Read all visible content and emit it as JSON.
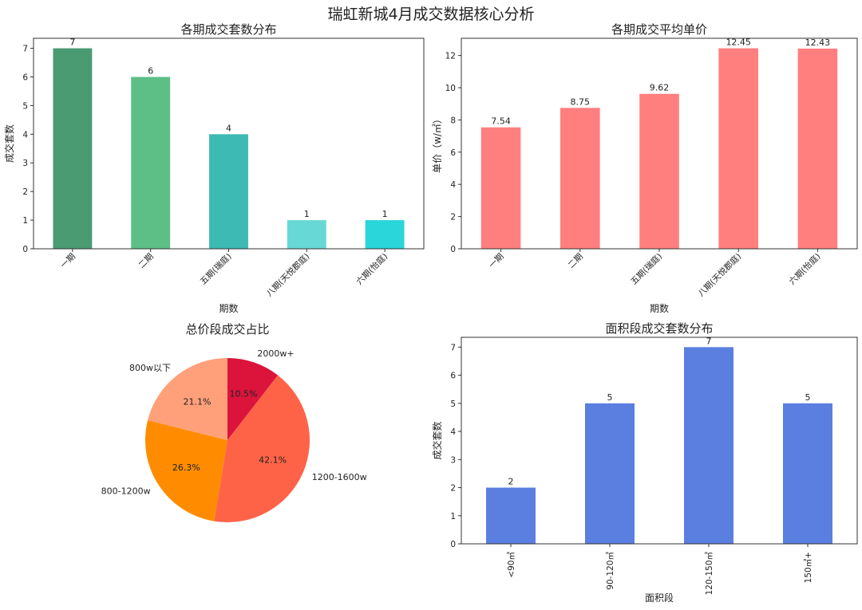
{
  "suptitle": "瑞虹新城4月成交数据核心分析",
  "chart_data": [
    {
      "type": "bar",
      "title": "各期成交套数分布",
      "xlabel": "期数",
      "ylabel": "成交套数",
      "categories": [
        "一期",
        "二期",
        "五期(瑞庭)",
        "八期(天悦郡庭)",
        "六期(怡庭)"
      ],
      "values": [
        7,
        6,
        4,
        1,
        1
      ],
      "data_labels": [
        "7",
        "6",
        "4",
        "1",
        "1"
      ],
      "ylim": [
        0,
        7.35
      ],
      "yticks": [
        "0",
        "1",
        "2",
        "3",
        "4",
        "5",
        "6",
        "7"
      ],
      "colors": [
        "#4a9a72",
        "#5dbf86",
        "#3dbab4",
        "#68d8d6",
        "#2ad6da"
      ],
      "grid": false
    },
    {
      "type": "bar",
      "title": "各期成交平均单价",
      "xlabel": "期数",
      "ylabel": "单价（w/㎡）",
      "categories": [
        "一期",
        "二期",
        "五期(瑞庭)",
        "八期(天悦郡庭)",
        "六期(怡庭)"
      ],
      "values": [
        7.54,
        8.75,
        9.62,
        12.45,
        12.43
      ],
      "data_labels": [
        "7.54",
        "8.75",
        "9.62",
        "12.45",
        "12.43"
      ],
      "ylim": [
        0,
        13.07
      ],
      "yticks": [
        "0",
        "2",
        "4",
        "6",
        "8",
        "10",
        "12"
      ],
      "colors": [
        "#ff7f7f",
        "#ff7f7f",
        "#ff7f7f",
        "#ff7f7f",
        "#ff7f7f"
      ],
      "grid": false
    },
    {
      "type": "pie",
      "title": "总价段成交占比",
      "labels": [
        "2000w+",
        "1200-1600w",
        "800-1200w",
        "800w以下"
      ],
      "values": [
        10.5,
        42.1,
        26.3,
        21.1
      ],
      "pct_labels": [
        "10.5%",
        "42.1%",
        "26.3%",
        "21.1%"
      ],
      "colors": [
        "#dc143c",
        "#ff6347",
        "#ff8c00",
        "#ffa07a"
      ],
      "start_angle": 90,
      "direction": "clockwise"
    },
    {
      "type": "bar",
      "title": "面积段成交套数分布",
      "xlabel": "面积段",
      "ylabel": "成交套数",
      "categories": [
        "<90㎡",
        "90-120㎡",
        "120-150㎡",
        "150㎡+"
      ],
      "values": [
        2,
        5,
        7,
        5
      ],
      "data_labels": [
        "2",
        "5",
        "7",
        "5"
      ],
      "ylim": [
        0,
        7.35
      ],
      "yticks": [
        "0",
        "1",
        "2",
        "3",
        "4",
        "5",
        "6",
        "7"
      ],
      "colors": [
        "#5b7fe0",
        "#5b7fe0",
        "#5b7fe0",
        "#5b7fe0"
      ],
      "grid": false
    }
  ]
}
